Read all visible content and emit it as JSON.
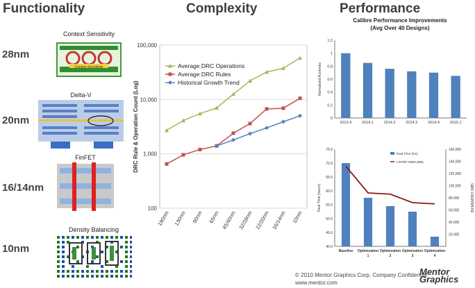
{
  "headers": {
    "functionality": "Functionality",
    "complexity": "Complexity",
    "performance": "Performance"
  },
  "nodes": [
    "28nm",
    "20nm",
    "16/14nm",
    "10nm"
  ],
  "illustrations": {
    "context": "Context Sensitivity",
    "context_inner": "Context Sensitivity",
    "delta": "Delta-V",
    "finfet": "FinFET",
    "density": "Density Balancing"
  },
  "footer": {
    "copyright": "© 2010 Mentor Graphics Corp. Company Confidential",
    "url": "www.mentor.com",
    "logo_line1": "Mentor",
    "logo_line2": "Graphics"
  },
  "colors": {
    "ops": "#9bbb59",
    "rules": "#c0504d",
    "trend": "#4f81bd",
    "bar": "#4f81bd",
    "line_dark": "#8b1a1a"
  },
  "chart_data": [
    {
      "type": "line",
      "title": "",
      "ylabel": "DRC Rule & Operation Count (Log)",
      "xlabel": "",
      "y_scale": "log",
      "ylim": [
        100,
        100000
      ],
      "y_ticks": [
        "100",
        "1,000",
        "10,000",
        "100,000"
      ],
      "categories": [
        "180nm",
        "130nm",
        "90nm",
        "65nm",
        "45/40nm",
        "32/28nm",
        "22/20nm",
        "16/14nm",
        "10nm"
      ],
      "legend_position": "top-left",
      "series": [
        {
          "name": "Average DRC Operations",
          "values": [
            2700,
            4100,
            5500,
            7000,
            12500,
            22000,
            32000,
            37500,
            58000
          ]
        },
        {
          "name": "Average DRC Rules",
          "values": [
            650,
            960,
            1200,
            1400,
            2400,
            3600,
            6700,
            6900,
            10500
          ]
        },
        {
          "name": "Historical Growth Trend",
          "values": [
            null,
            null,
            null,
            1400,
            1800,
            2350,
            3000,
            3900,
            5000
          ]
        }
      ]
    },
    {
      "type": "bar",
      "title": "Calibre Performance Improvements",
      "subtitle": "(Avg Over 40 Designs)",
      "ylabel": "Normalized Runtimes",
      "xlabel": "",
      "ylim": [
        0,
        1.2
      ],
      "y_ticks": [
        "0",
        "0.2",
        "0.4",
        "0.6",
        "0.8",
        "1",
        "1.2"
      ],
      "grid": false,
      "categories": [
        "2013.4",
        "2014.1",
        "2014.2",
        "2014.3",
        "2014.4",
        "2015.1"
      ],
      "values": [
        1.0,
        0.85,
        0.76,
        0.72,
        0.7,
        0.65
      ]
    },
    {
      "type": "bar",
      "title": "",
      "ylabel": "Real Time (hours)",
      "y2label": "Bit MEMORY (MB)",
      "ylim": [
        40,
        75
      ],
      "y_ticks": [
        "40.0",
        "45.0",
        "50.0",
        "55.0",
        "60.0",
        "65.0",
        "70.0",
        "75.0"
      ],
      "y2_ticks": [
        "",
        "20,000",
        "40,000",
        "60,000",
        "80,000",
        "100,000",
        "120,000",
        "140,000",
        "160,000"
      ],
      "categories": [
        "Baseline",
        "Optimization 1",
        "Optimization 2",
        "Optimization 3",
        "Optimization 4"
      ],
      "legend": [
        "Real Time (hrs)",
        "LSF/MT MEM (MB)"
      ],
      "values": [
        70,
        57.5,
        54.5,
        52.5,
        43.5
      ],
      "memory": [
        132000,
        88000,
        86000,
        72000,
        70000
      ]
    }
  ]
}
